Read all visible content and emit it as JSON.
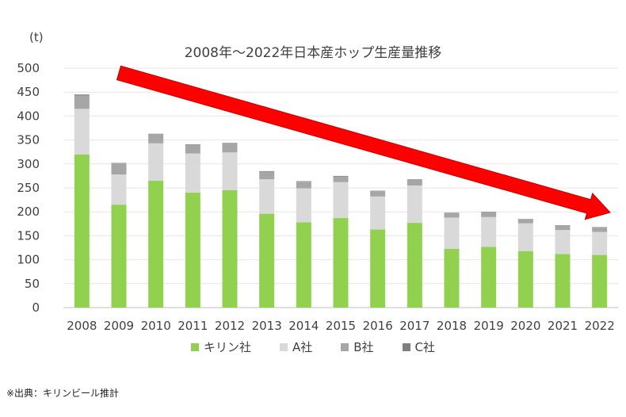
{
  "chart_data": {
    "type": "bar",
    "stacked": true,
    "title": "2008年～2022年日本産ホップ生産量推移",
    "unit_label": "(t)",
    "categories": [
      "2008",
      "2009",
      "2010",
      "2011",
      "2012",
      "2013",
      "2014",
      "2015",
      "2016",
      "2017",
      "2018",
      "2019",
      "2020",
      "2021",
      "2022"
    ],
    "ylim": [
      0,
      500
    ],
    "yticks": [
      0,
      50,
      100,
      150,
      200,
      250,
      300,
      350,
      400,
      450,
      500
    ],
    "grid": true,
    "legend_position": "bottom",
    "series": [
      {
        "name": "キリン社",
        "color": "#92d050",
        "values": [
          320,
          215,
          265,
          240,
          245,
          196,
          178,
          187,
          163,
          177,
          123,
          127,
          118,
          112,
          110
        ]
      },
      {
        "name": "A社",
        "color": "#d9d9d9",
        "values": [
          95,
          63,
          78,
          82,
          79,
          72,
          71,
          75,
          69,
          78,
          65,
          62,
          58,
          50,
          48
        ]
      },
      {
        "name": "B社",
        "color": "#a6a6a6",
        "values": [
          28,
          23,
          19,
          18,
          19,
          16,
          14,
          12,
          11,
          12,
          9,
          10,
          8,
          9,
          9
        ]
      },
      {
        "name": "C社",
        "color": "#7f7f7f",
        "values": [
          2,
          1,
          1,
          1,
          1,
          1,
          1,
          1,
          1,
          1,
          1,
          1,
          1,
          1,
          1
        ]
      }
    ],
    "annotation": "red-downward-trend-arrow"
  },
  "source_note": "※出典：キリンビール推計"
}
